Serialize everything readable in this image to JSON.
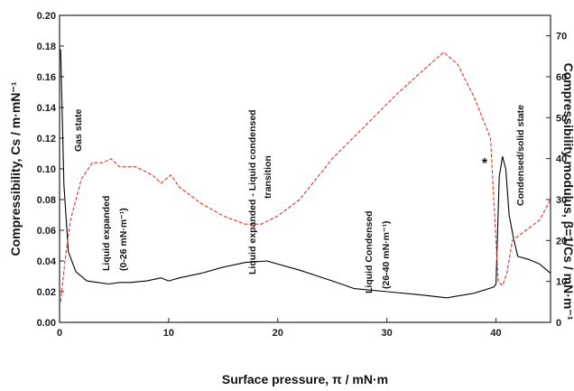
{
  "chart_data": {
    "type": "line",
    "xlabel": "Surface pressure, π / mN·m",
    "ylabel_left": "Compressibility, Cs / m·mN⁻¹",
    "ylabel_right": "Compressibility modulus, β=1/Cs / mN·m⁻¹",
    "xlim": [
      0,
      45
    ],
    "ylim_left": [
      0,
      0.2
    ],
    "ylim_right": [
      0,
      75
    ],
    "x_ticks": [
      0,
      10,
      20,
      30,
      40
    ],
    "y_left_ticks": [
      "0.00",
      "0.02",
      "0.04",
      "0.06",
      "0.08",
      "0.10",
      "0.12",
      "0.14",
      "0.16",
      "0.18",
      "0.20"
    ],
    "y_right_ticks": [
      "0",
      "10",
      "20",
      "30",
      "40",
      "50",
      "60",
      "70"
    ],
    "series": [
      {
        "axis": "left",
        "color": "#000000",
        "style": "solid",
        "x": [
          0.1,
          0.4,
          0.8,
          1.5,
          2.5,
          3.5,
          4.5,
          5.5,
          6.5,
          8.0,
          9.3,
          10.0,
          11.0,
          13.0,
          15.0,
          17.0,
          19.0,
          22.0,
          25.0,
          27.0,
          30.0,
          33.0,
          35.5,
          38.0,
          39.8,
          40.0,
          40.3,
          40.6,
          40.9,
          41.2,
          41.6,
          42.0,
          43.0,
          44.0,
          45.0
        ],
        "y": [
          0.178,
          0.09,
          0.046,
          0.033,
          0.027,
          0.026,
          0.025,
          0.026,
          0.026,
          0.027,
          0.029,
          0.027,
          0.029,
          0.032,
          0.036,
          0.039,
          0.04,
          0.034,
          0.027,
          0.022,
          0.02,
          0.018,
          0.016,
          0.019,
          0.023,
          0.025,
          0.095,
          0.108,
          0.1,
          0.07,
          0.055,
          0.043,
          0.041,
          0.038,
          0.032
        ]
      },
      {
        "axis": "right",
        "color": "#e0332c",
        "style": "dashed",
        "x": [
          0.1,
          0.5,
          1.0,
          2.0,
          3.0,
          4.0,
          4.7,
          5.5,
          7.0,
          8.5,
          9.3,
          10.2,
          11.0,
          13.0,
          15.0,
          17.0,
          18.5,
          20.0,
          22.0,
          25.0,
          28.0,
          31.0,
          33.5,
          35.2,
          36.5,
          38.0,
          39.5,
          40.2,
          40.6,
          41.0,
          41.5,
          42.5,
          44.0,
          45.0
        ],
        "y": [
          5,
          15,
          25,
          35,
          39,
          39,
          40,
          38,
          38,
          36,
          34,
          36,
          33,
          29,
          26,
          24,
          24,
          26,
          30,
          40,
          48,
          56,
          62,
          66,
          63,
          55,
          45,
          10,
          9,
          12,
          20,
          22,
          25,
          30
        ]
      }
    ],
    "annotations": {
      "gas_state": "Gas state",
      "liquid_expanded": "Liquid expanded",
      "liquid_expanded_range": "(0-26 mN·m⁻¹)",
      "le_lc_line1": "Liquid expanded - Liquid condensed",
      "le_lc_line2": "transition",
      "liquid_condensed": "Liquid Condensed",
      "liquid_condensed_range": "(26-40 mN·m⁻¹)",
      "condensed_solid": "Condensed/solid state",
      "star": "*"
    }
  }
}
